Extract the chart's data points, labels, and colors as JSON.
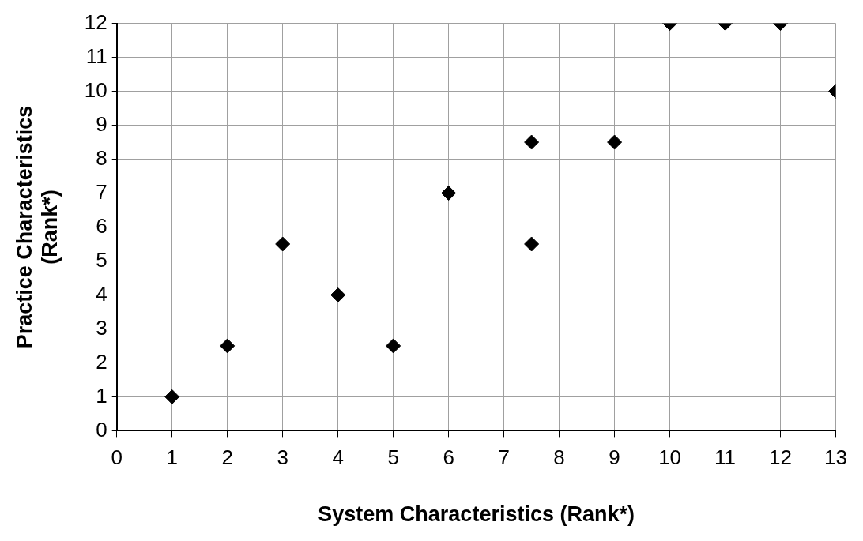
{
  "chart_data": {
    "type": "scatter",
    "xlabel": "System Characteristics (Rank*)",
    "ylabel": "Practice Characteristics\n(Rank*)",
    "x": [
      1,
      2,
      3,
      4,
      5,
      6,
      7.5,
      7.5,
      9,
      10,
      11,
      12,
      13
    ],
    "series": [
      {
        "color": "#000000",
        "values": [
          1,
          2.5,
          5.5,
          4,
          2.5,
          7,
          8.5,
          5.5,
          8.5,
          12,
          12,
          12,
          10
        ]
      }
    ],
    "xlim": [
      0,
      13
    ],
    "xticks": [
      0,
      1,
      2,
      3,
      4,
      5,
      6,
      7,
      8,
      9,
      10,
      11,
      12,
      13
    ],
    "ylim": [
      0,
      12
    ],
    "yticks": [
      0,
      1,
      2,
      3,
      4,
      5,
      6,
      7,
      8,
      9,
      10,
      11,
      12
    ],
    "grid": true,
    "legend": false,
    "marker": "diamond"
  }
}
